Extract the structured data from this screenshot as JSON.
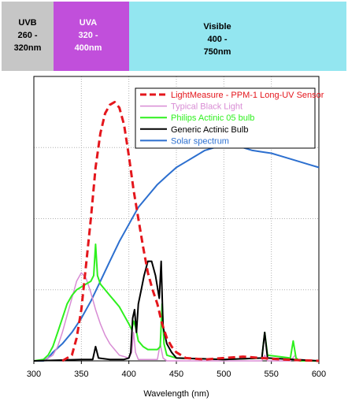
{
  "chart_data": {
    "type": "line",
    "title": "",
    "xlabel": "Wavelength (nm)",
    "ylabel": "",
    "xlim": [
      300,
      600
    ],
    "ylim": [
      0,
      1.0
    ],
    "x_ticks": [
      300,
      350,
      400,
      450,
      500,
      550,
      600
    ],
    "x_tick_labels": [
      "300",
      "350",
      "400",
      "450",
      "500",
      "550",
      "600"
    ],
    "grid": true,
    "legend_position": "top-right",
    "bands": [
      {
        "name": "uvb",
        "line1": "UVB",
        "line2": "260 -",
        "line3": "320nm",
        "x_start": 260,
        "x_end": 320,
        "color": "#c6c6c6"
      },
      {
        "name": "uva",
        "line1": "UVA",
        "line2": "320 -",
        "line3": "400nm",
        "x_start": 320,
        "x_end": 400,
        "color": "#c14fdb"
      },
      {
        "name": "visible",
        "line1": "Visible",
        "line2": "400 -",
        "line3": "750nm",
        "x_start": 400,
        "x_end": 750,
        "color": "#93e6f0"
      }
    ],
    "series": [
      {
        "name": "LightMeasure - PPM-1 Long-UV Sensor",
        "color": "#e4161c",
        "dash": "9,5",
        "width": 3,
        "points": [
          [
            330,
            0
          ],
          [
            340,
            0.02
          ],
          [
            345,
            0.08
          ],
          [
            350,
            0.18
          ],
          [
            355,
            0.34
          ],
          [
            360,
            0.5
          ],
          [
            365,
            0.68
          ],
          [
            370,
            0.8
          ],
          [
            375,
            0.87
          ],
          [
            380,
            0.9
          ],
          [
            385,
            0.91
          ],
          [
            390,
            0.89
          ],
          [
            395,
            0.83
          ],
          [
            400,
            0.72
          ],
          [
            405,
            0.6
          ],
          [
            410,
            0.5
          ],
          [
            415,
            0.4
          ],
          [
            420,
            0.31
          ],
          [
            425,
            0.25
          ],
          [
            430,
            0.2
          ],
          [
            435,
            0.13
          ],
          [
            440,
            0.08
          ],
          [
            445,
            0.05
          ],
          [
            450,
            0.03
          ],
          [
            460,
            0.01
          ],
          [
            480,
            0.005
          ],
          [
            500,
            0.01
          ],
          [
            520,
            0.015
          ],
          [
            540,
            0.01
          ],
          [
            560,
            0.005
          ],
          [
            600,
            0
          ]
        ]
      },
      {
        "name": "Typical Black Light",
        "color": "#d88cd4",
        "dash": "",
        "width": 1.5,
        "points": [
          [
            310,
            0
          ],
          [
            320,
            0.02
          ],
          [
            325,
            0.05
          ],
          [
            330,
            0.1
          ],
          [
            335,
            0.16
          ],
          [
            340,
            0.22
          ],
          [
            345,
            0.28
          ],
          [
            350,
            0.31
          ],
          [
            355,
            0.29
          ],
          [
            360,
            0.24
          ],
          [
            365,
            0.18
          ],
          [
            370,
            0.13
          ],
          [
            375,
            0.09
          ],
          [
            380,
            0.06
          ],
          [
            385,
            0.04
          ],
          [
            390,
            0.02
          ],
          [
            400,
            0.01
          ],
          [
            403,
            0.03
          ],
          [
            405,
            0.1
          ],
          [
            407,
            0.03
          ],
          [
            410,
            0.005
          ],
          [
            430,
            0.005
          ],
          [
            433,
            0.06
          ],
          [
            436,
            0.01
          ],
          [
            440,
            0
          ],
          [
            540,
            0
          ],
          [
            543,
            0.02
          ],
          [
            546,
            0
          ],
          [
            570,
            0
          ],
          [
            575,
            0.02
          ],
          [
            578,
            0
          ],
          [
            600,
            0
          ]
        ]
      },
      {
        "name": "Philips Actinic 05 bulb",
        "color": "#2ef01e",
        "dash": "",
        "width": 2,
        "points": [
          [
            300,
            0
          ],
          [
            310,
            0.005
          ],
          [
            315,
            0.02
          ],
          [
            320,
            0.05
          ],
          [
            325,
            0.1
          ],
          [
            330,
            0.15
          ],
          [
            335,
            0.2
          ],
          [
            340,
            0.23
          ],
          [
            345,
            0.25
          ],
          [
            350,
            0.26
          ],
          [
            355,
            0.27
          ],
          [
            360,
            0.28
          ],
          [
            363,
            0.3
          ],
          [
            365,
            0.41
          ],
          [
            367,
            0.3
          ],
          [
            370,
            0.27
          ],
          [
            375,
            0.25
          ],
          [
            380,
            0.23
          ],
          [
            385,
            0.21
          ],
          [
            390,
            0.19
          ],
          [
            395,
            0.16
          ],
          [
            400,
            0.13
          ],
          [
            403,
            0.11
          ],
          [
            405,
            0.14
          ],
          [
            407,
            0.12
          ],
          [
            410,
            0.07
          ],
          [
            415,
            0.05
          ],
          [
            420,
            0.04
          ],
          [
            425,
            0.04
          ],
          [
            430,
            0.04
          ],
          [
            433,
            0.05
          ],
          [
            435,
            0.2
          ],
          [
            437,
            0.06
          ],
          [
            440,
            0.02
          ],
          [
            450,
            0.01
          ],
          [
            500,
            0.005
          ],
          [
            540,
            0.01
          ],
          [
            543,
            0.1
          ],
          [
            546,
            0.02
          ],
          [
            570,
            0.01
          ],
          [
            573,
            0.07
          ],
          [
            576,
            0.01
          ],
          [
            580,
            0
          ],
          [
            600,
            0
          ]
        ]
      },
      {
        "name": "Generic Actinic Bulb",
        "color": "#000000",
        "dash": "",
        "width": 2,
        "points": [
          [
            300,
            0
          ],
          [
            350,
            0.005
          ],
          [
            362,
            0.005
          ],
          [
            365,
            0.05
          ],
          [
            368,
            0.01
          ],
          [
            380,
            0.005
          ],
          [
            395,
            0.005
          ],
          [
            400,
            0.01
          ],
          [
            402,
            0.03
          ],
          [
            404,
            0.15
          ],
          [
            406,
            0.18
          ],
          [
            408,
            0.1
          ],
          [
            410,
            0.2
          ],
          [
            413,
            0.25
          ],
          [
            416,
            0.3
          ],
          [
            420,
            0.35
          ],
          [
            424,
            0.35
          ],
          [
            428,
            0.3
          ],
          [
            432,
            0.22
          ],
          [
            434,
            0.35
          ],
          [
            436,
            0.12
          ],
          [
            440,
            0.06
          ],
          [
            445,
            0.03
          ],
          [
            450,
            0.01
          ],
          [
            500,
            0.005
          ],
          [
            540,
            0.01
          ],
          [
            543,
            0.1
          ],
          [
            546,
            0.01
          ],
          [
            600,
            0
          ]
        ]
      },
      {
        "name": "Solar spectrum",
        "color": "#2c6fcf",
        "dash": "",
        "width": 2,
        "points": [
          [
            300,
            0
          ],
          [
            310,
            0
          ],
          [
            315,
            0.01
          ],
          [
            320,
            0.03
          ],
          [
            330,
            0.06
          ],
          [
            340,
            0.1
          ],
          [
            350,
            0.15
          ],
          [
            360,
            0.21
          ],
          [
            370,
            0.28
          ],
          [
            380,
            0.35
          ],
          [
            390,
            0.42
          ],
          [
            400,
            0.48
          ],
          [
            410,
            0.54
          ],
          [
            420,
            0.58
          ],
          [
            430,
            0.62
          ],
          [
            440,
            0.65
          ],
          [
            450,
            0.68
          ],
          [
            460,
            0.7
          ],
          [
            470,
            0.72
          ],
          [
            480,
            0.74
          ],
          [
            490,
            0.75
          ],
          [
            500,
            0.75
          ],
          [
            510,
            0.755
          ],
          [
            520,
            0.75
          ],
          [
            530,
            0.74
          ],
          [
            540,
            0.735
          ],
          [
            550,
            0.73
          ],
          [
            560,
            0.72
          ],
          [
            570,
            0.71
          ],
          [
            580,
            0.7
          ],
          [
            590,
            0.69
          ],
          [
            600,
            0.68
          ]
        ]
      }
    ]
  }
}
